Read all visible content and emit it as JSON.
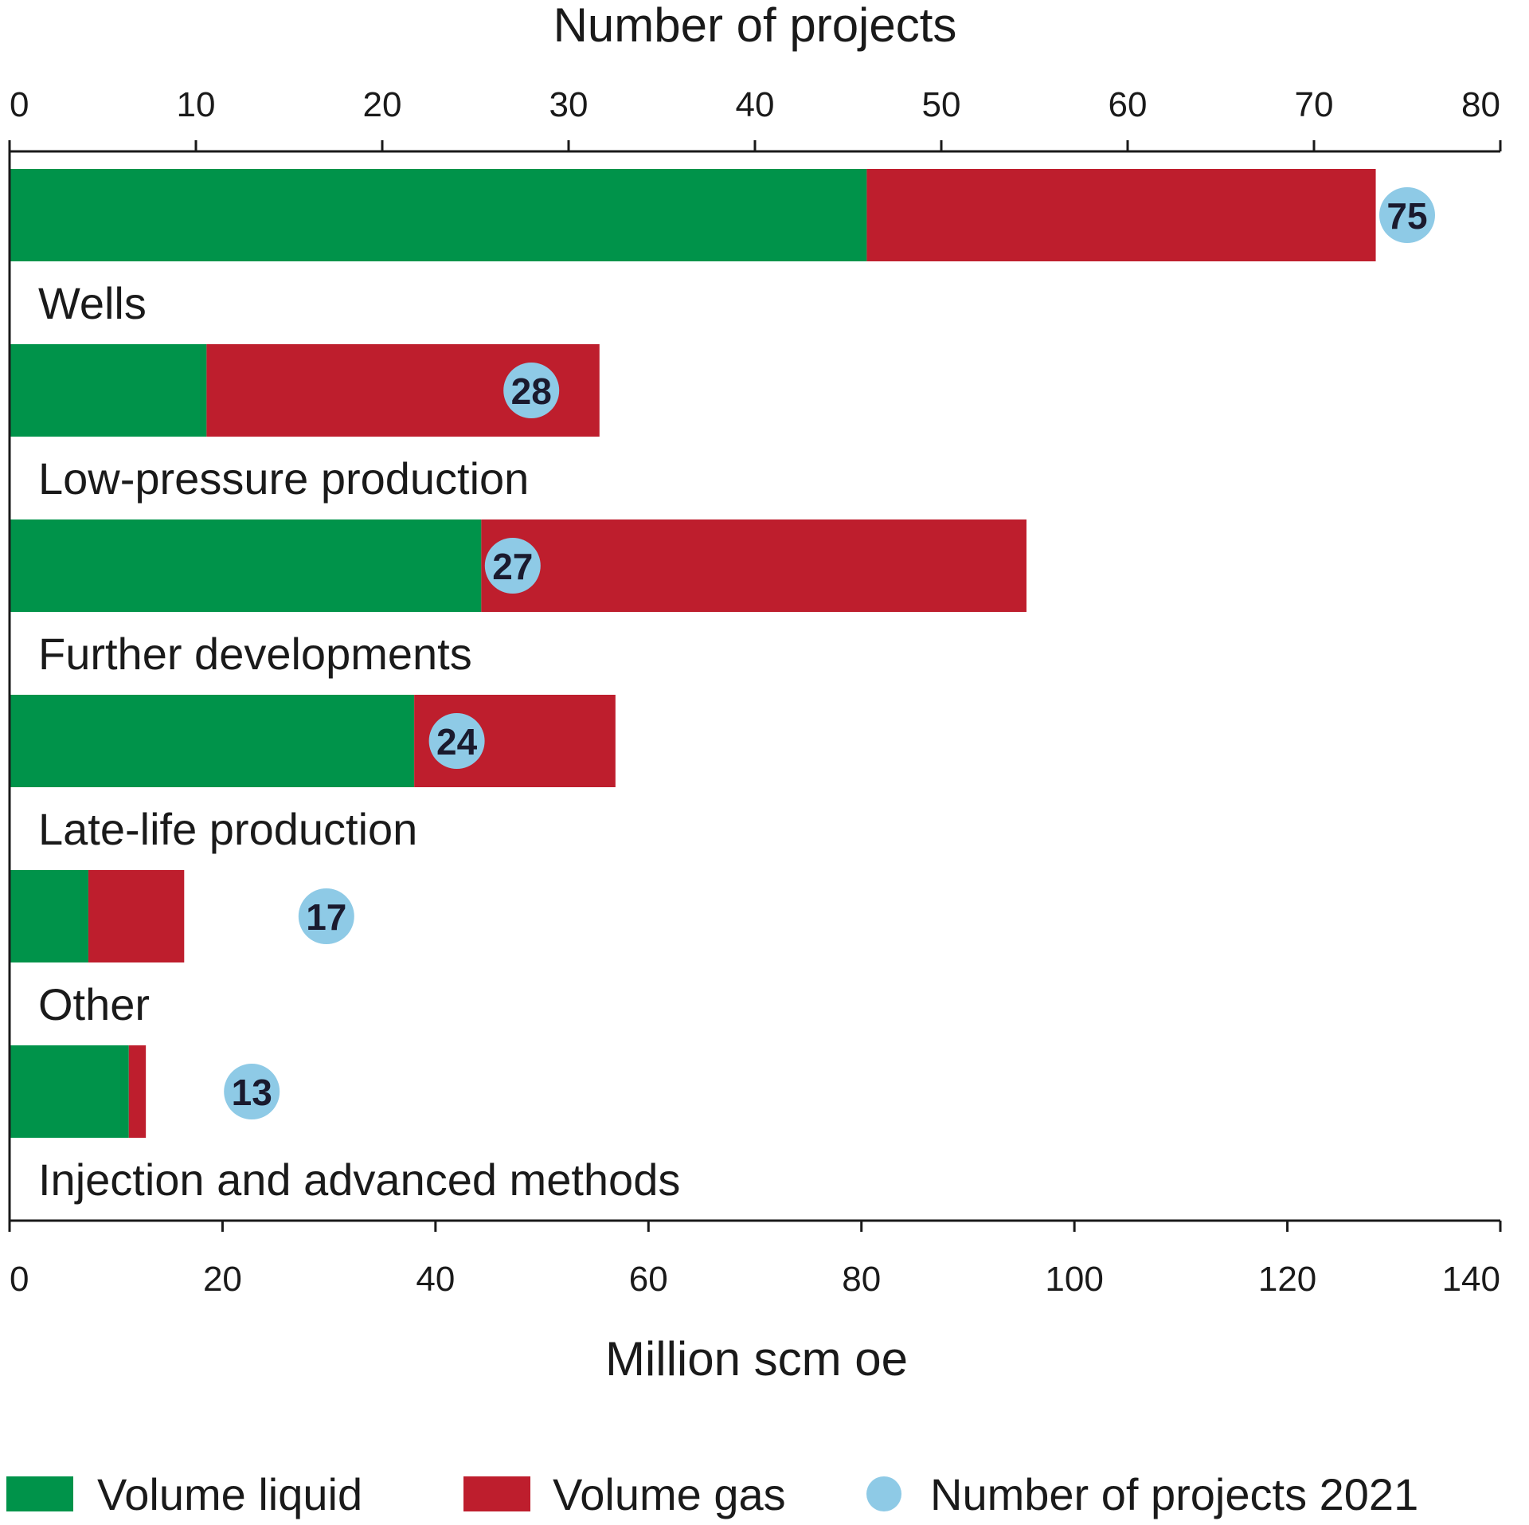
{
  "chart_data": {
    "type": "bar",
    "orientation": "horizontal",
    "stacked": true,
    "categories": [
      "Wells",
      "Low-pressure production",
      "Further developments",
      "Late-life production",
      "Other",
      "Injection and advanced methods"
    ],
    "series": [
      {
        "name": "Volume liquid",
        "color": "#00934a",
        "values": [
          80.5,
          18.5,
          44.3,
          38.0,
          7.4,
          11.2
        ]
      },
      {
        "name": "Volume gas",
        "color": "#be1e2d",
        "values": [
          47.8,
          36.9,
          51.2,
          18.9,
          9.0,
          1.6
        ]
      }
    ],
    "points": {
      "name": "Number of projects 2021",
      "color": "#8ecae6",
      "values": [
        75,
        28,
        27,
        24,
        17,
        13
      ]
    },
    "x_axis_bottom": {
      "label": "Million scm oe",
      "range": [
        0,
        140
      ],
      "ticks": [
        "0",
        "20",
        "40",
        "60",
        "80",
        "100",
        "120",
        "140"
      ]
    },
    "x_axis_top": {
      "label": "Number of projects",
      "range": [
        0,
        80
      ],
      "ticks": [
        "0",
        "10",
        "20",
        "30",
        "40",
        "50",
        "60",
        "70",
        "80"
      ]
    },
    "grid": false,
    "legend_position": "bottom"
  }
}
